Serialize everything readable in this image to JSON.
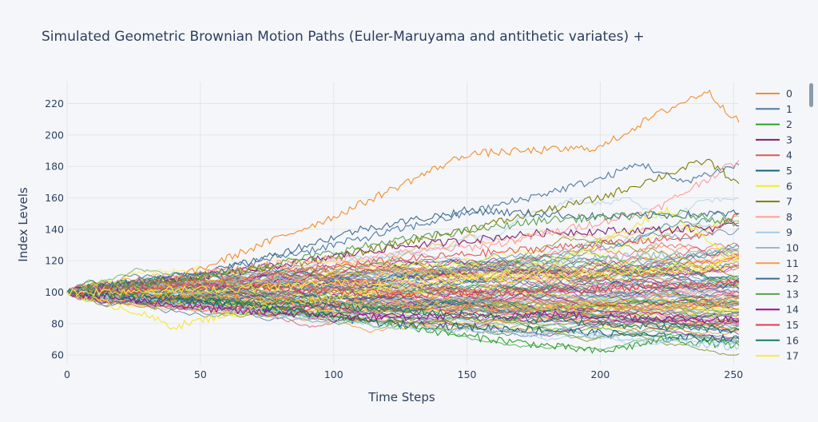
{
  "chart_data": {
    "type": "line",
    "title": "Simulated Geometric Brownian Motion Paths (Euler-Maruyama and antithetic variates) +",
    "xlabel": "Time Steps",
    "ylabel": "Index Levels",
    "xlim": [
      0,
      252
    ],
    "ylim": [
      54,
      234
    ],
    "x_ticks": [
      0,
      50,
      100,
      150,
      200,
      250
    ],
    "y_ticks": [
      60,
      80,
      100,
      120,
      140,
      160,
      180,
      200,
      220
    ],
    "x_tick_labels": [
      "0",
      "50",
      "100",
      "150",
      "200",
      "250"
    ],
    "y_tick_labels": [
      "60",
      "80",
      "100",
      "120",
      "140",
      "160",
      "180",
      "200",
      "220"
    ],
    "grid": true,
    "legend_position": "right (scrollable)",
    "start_value": 100,
    "n_steps": 252,
    "series_colors": [
      "#F28E2B",
      "#4E79A7",
      "#2CA02C",
      "#7B1E7A",
      "#E15759",
      "#17607D",
      "#F2E836",
      "#7F7F00",
      "#FF9D9A",
      "#A0CBE8",
      "#9AB8C8",
      "#F1A340",
      "#3F6C8F",
      "#59A14F",
      "#9C0F8F",
      "#E03C5A",
      "#167A6A",
      "#FFEB3B"
    ],
    "series": [
      {
        "name": "0",
        "values": [
          [
            0,
            100
          ],
          [
            40,
            108
          ],
          [
            80,
            135
          ],
          [
            100,
            148
          ],
          [
            150,
            188
          ],
          [
            200,
            192
          ],
          [
            220,
            212
          ],
          [
            240,
            228
          ],
          [
            252,
            208
          ]
        ]
      },
      {
        "name": "1",
        "values": [
          [
            0,
            100
          ],
          [
            50,
            112
          ],
          [
            100,
            130
          ],
          [
            150,
            150
          ],
          [
            200,
            172
          ],
          [
            215,
            182
          ],
          [
            230,
            170
          ],
          [
            252,
            181
          ]
        ]
      },
      {
        "name": "2",
        "values": [
          [
            0,
            100
          ],
          [
            50,
            95
          ],
          [
            100,
            85
          ],
          [
            150,
            72
          ],
          [
            200,
            62
          ],
          [
            225,
            70
          ],
          [
            252,
            66
          ]
        ]
      },
      {
        "name": "3",
        "values": [
          [
            0,
            100
          ],
          [
            60,
            112
          ],
          [
            120,
            128
          ],
          [
            180,
            138
          ],
          [
            230,
            140
          ],
          [
            252,
            142
          ]
        ]
      },
      {
        "name": "4",
        "values": [
          [
            0,
            100
          ],
          [
            60,
            108
          ],
          [
            120,
            120
          ],
          [
            180,
            128
          ],
          [
            240,
            136
          ],
          [
            252,
            150
          ]
        ]
      },
      {
        "name": "5",
        "values": [
          [
            0,
            100
          ],
          [
            60,
            92
          ],
          [
            120,
            80
          ],
          [
            180,
            76
          ],
          [
            220,
            72
          ],
          [
            252,
            70
          ]
        ]
      },
      {
        "name": "6",
        "values": [
          [
            0,
            100
          ],
          [
            25,
            88
          ],
          [
            40,
            78
          ],
          [
            70,
            90
          ],
          [
            120,
            102
          ],
          [
            180,
            115
          ],
          [
            225,
            152
          ],
          [
            252,
            120
          ]
        ]
      },
      {
        "name": "7",
        "values": [
          [
            0,
            100
          ],
          [
            50,
            110
          ],
          [
            100,
            122
          ],
          [
            150,
            140
          ],
          [
            200,
            160
          ],
          [
            240,
            184
          ],
          [
            252,
            169
          ]
        ]
      },
      {
        "name": "8",
        "values": [
          [
            0,
            100
          ],
          [
            80,
            118
          ],
          [
            160,
            130
          ],
          [
            220,
            152
          ],
          [
            252,
            184
          ]
        ]
      },
      {
        "name": "9",
        "values": [
          [
            0,
            100
          ],
          [
            60,
            90
          ],
          [
            120,
            78
          ],
          [
            200,
            72
          ],
          [
            252,
            65
          ]
        ]
      },
      {
        "name": "10",
        "values": [
          [
            0,
            100
          ],
          [
            60,
            106
          ],
          [
            130,
            112
          ],
          [
            200,
            122
          ],
          [
            252,
            126
          ]
        ]
      },
      {
        "name": "11",
        "values": [
          [
            0,
            100
          ],
          [
            60,
            96
          ],
          [
            130,
            92
          ],
          [
            200,
            88
          ],
          [
            252,
            94
          ]
        ]
      },
      {
        "name": "12",
        "values": [
          [
            0,
            100
          ],
          [
            60,
            115
          ],
          [
            110,
            140
          ],
          [
            150,
            152
          ],
          [
            200,
            148
          ],
          [
            252,
            150
          ]
        ]
      },
      {
        "name": "13",
        "values": [
          [
            0,
            100
          ],
          [
            60,
            112
          ],
          [
            120,
            132
          ],
          [
            180,
            146
          ],
          [
            230,
            150
          ],
          [
            252,
            144
          ]
        ]
      },
      {
        "name": "14",
        "values": [
          [
            0,
            100
          ],
          [
            60,
            88
          ],
          [
            120,
            84
          ],
          [
            180,
            86
          ],
          [
            252,
            82
          ]
        ]
      },
      {
        "name": "15",
        "values": [
          [
            0,
            100
          ],
          [
            60,
            104
          ],
          [
            130,
            98
          ],
          [
            200,
            102
          ],
          [
            252,
            106
          ]
        ]
      },
      {
        "name": "16",
        "values": [
          [
            0,
            100
          ],
          [
            60,
            94
          ],
          [
            130,
            88
          ],
          [
            200,
            80
          ],
          [
            252,
            76
          ]
        ]
      },
      {
        "name": "17",
        "values": [
          [
            0,
            100
          ],
          [
            60,
            102
          ],
          [
            130,
            108
          ],
          [
            200,
            112
          ],
          [
            252,
            116
          ]
        ]
      }
    ]
  },
  "legend": {
    "items": [
      "0",
      "1",
      "2",
      "3",
      "4",
      "5",
      "6",
      "7",
      "8",
      "9",
      "10",
      "11",
      "12",
      "13",
      "14",
      "15",
      "16",
      "17"
    ]
  }
}
